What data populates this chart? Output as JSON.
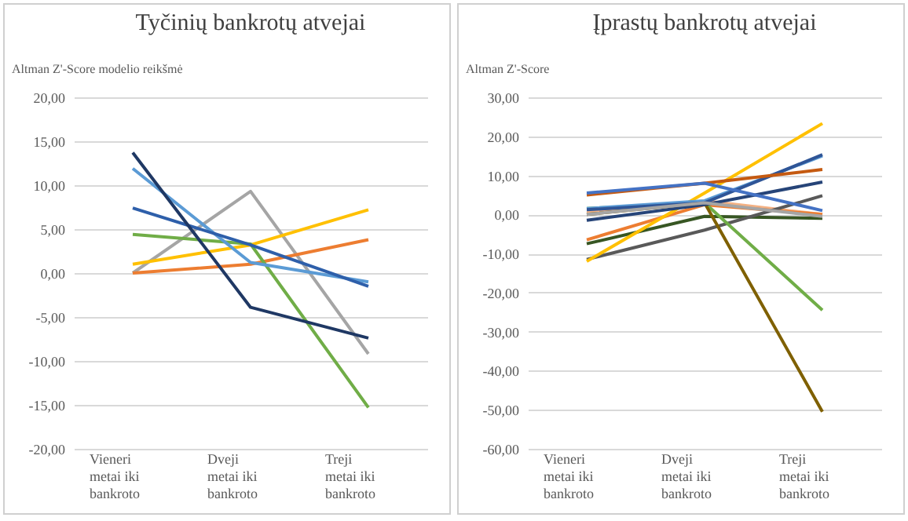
{
  "chart_data": [
    {
      "type": "line",
      "title": "Tyčinių bankrotų atvejai",
      "ylabel": "Altman Z'-Score modelio reikšmė",
      "categories": [
        "Vieneri metai iki bankroto",
        "Dveji metai iki bankroto",
        "Treji metai iki bankroto"
      ],
      "ylim": [
        -20,
        20
      ],
      "yticks": [
        {
          "value": -20,
          "label": "-20,00"
        },
        {
          "value": -15,
          "label": "-15,00"
        },
        {
          "value": -10,
          "label": "-10,00"
        },
        {
          "value": -5,
          "label": "-5,00"
        },
        {
          "value": 0,
          "label": "0,00"
        },
        {
          "value": 5,
          "label": "5,00"
        },
        {
          "value": 10,
          "label": "10,00"
        },
        {
          "value": 15,
          "label": "15,00"
        },
        {
          "value": 20,
          "label": "20,00"
        }
      ],
      "grid": "y",
      "legend": false,
      "series": [
        {
          "color": "#a5a5a5",
          "values": [
            0.0,
            9.3,
            -9.2
          ]
        },
        {
          "color": "#ed7d31",
          "values": [
            0.0,
            1.0,
            3.8
          ]
        },
        {
          "color": "#ffc000",
          "values": [
            1.0,
            3.2,
            7.2
          ]
        },
        {
          "color": "#70ad47",
          "values": [
            4.4,
            3.3,
            -15.3
          ]
        },
        {
          "color": "#5b9bd5",
          "values": [
            11.9,
            1.2,
            -1.0
          ]
        },
        {
          "color": "#2e5faa",
          "values": [
            7.4,
            3.2,
            -1.5
          ]
        },
        {
          "color": "#1f3864",
          "values": [
            13.7,
            -3.9,
            -7.4
          ]
        }
      ]
    },
    {
      "type": "line",
      "title": "Įprastų bankrotų atvejai",
      "ylabel": "Altman Z'-Score",
      "categories": [
        "Vieneri metai iki bankroto",
        "Dveji metai iki bankroto",
        "Treji metai iki bankroto"
      ],
      "ylim": [
        -60,
        30
      ],
      "yticks": [
        {
          "value": -60,
          "label": "-60,00"
        },
        {
          "value": -50,
          "label": "-50,00"
        },
        {
          "value": -40,
          "label": "-40,00"
        },
        {
          "value": -30,
          "label": "-30,00"
        },
        {
          "value": -20,
          "label": "-20,00"
        },
        {
          "value": -10,
          "label": "-10,00"
        },
        {
          "value": 0,
          "label": "0,00"
        },
        {
          "value": 10,
          "label": "10,00"
        },
        {
          "value": 20,
          "label": "20,00"
        },
        {
          "value": 30,
          "label": "30,00"
        }
      ],
      "grid": "y",
      "legend": false,
      "series": [
        {
          "color": "#f4b183",
          "values": [
            0.5,
            3.5,
            0.0
          ]
        },
        {
          "color": "#ed7d31",
          "values": [
            -6.5,
            2.5,
            0.0
          ]
        },
        {
          "color": "#375623",
          "values": [
            -7.5,
            -0.5,
            -1.0
          ]
        },
        {
          "color": "#595959",
          "values": [
            -11.5,
            -4.0,
            4.8
          ]
        },
        {
          "color": "#ffc000",
          "values": [
            -12.0,
            5.5,
            23.3
          ]
        },
        {
          "color": "#70ad47",
          "values": [
            1.5,
            3.0,
            -24.5
          ]
        },
        {
          "color": "#7f6000",
          "values": [
            0.0,
            3.0,
            -50.5
          ]
        },
        {
          "color": "#264478",
          "values": [
            -1.5,
            2.5,
            8.3
          ]
        },
        {
          "color": "#5b9bd5",
          "values": [
            1.5,
            3.5,
            15.0
          ]
        },
        {
          "color": "#2f5597",
          "values": [
            1.2,
            3.0,
            15.3
          ]
        },
        {
          "color": "#c55a11",
          "values": [
            5.0,
            8.0,
            11.5
          ]
        },
        {
          "color": "#4472c4",
          "values": [
            5.5,
            8.0,
            1.0
          ]
        },
        {
          "color": "#a5a5a5",
          "values": [
            0.0,
            3.0,
            -0.5
          ]
        }
      ]
    }
  ]
}
